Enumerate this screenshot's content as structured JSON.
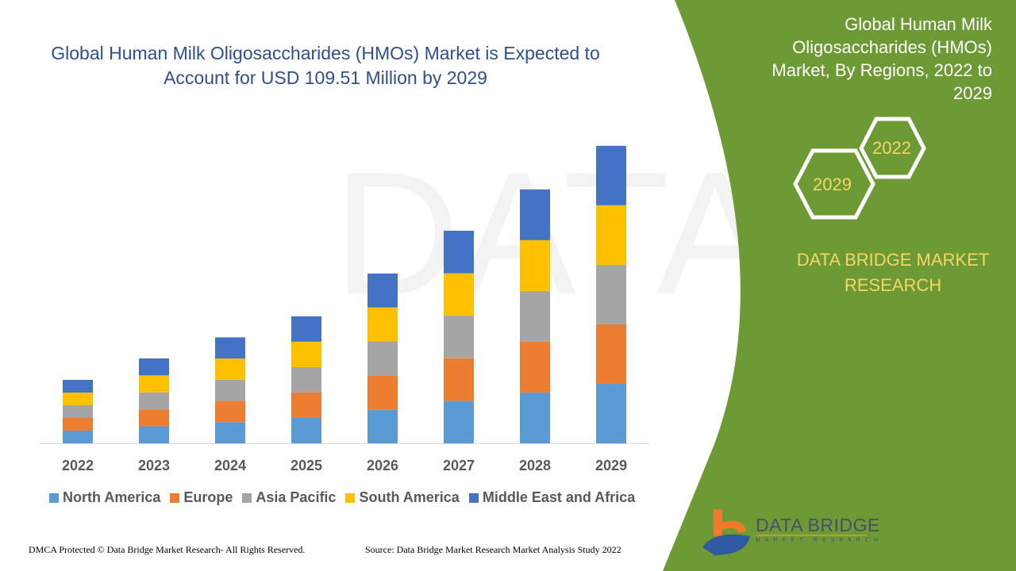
{
  "title": "Global Human Milk Oligosaccharides (HMOs) Market is Expected to Account for USD 109.51 Million by 2029",
  "side_panel": {
    "title": "Global Human Milk Oligosaccharides (HMOs) Market, By Regions, 2022 to 2029",
    "hex_start": "2022",
    "hex_end": "2029",
    "brand": "DATA BRIDGE MARKET RESEARCH",
    "panel_color": "#6e9a36",
    "accent_color": "#f5d565"
  },
  "logo": {
    "name": "DATA BRIDGE",
    "sub": "MARKET RESEARCH"
  },
  "footer": {
    "left": "DMCA Protected © Data Bridge Market Research- All Rights Reserved.",
    "right": "Source: Data Bridge Market Research Market Analysis Study 2022"
  },
  "chart_data": {
    "type": "bar",
    "stacked": true,
    "title": "Global Human Milk Oligosaccharides (HMOs) Market is Expected to Account for USD 109.51 Million by 2029",
    "xlabel": "",
    "ylabel": "",
    "ylim": [
      0,
      115
    ],
    "grid": false,
    "y_axis_visible": false,
    "legend_position": "bottom",
    "categories": [
      "2022",
      "2023",
      "2024",
      "2025",
      "2026",
      "2027",
      "2028",
      "2029"
    ],
    "series": [
      {
        "name": "North America",
        "color": "#5b9bd5",
        "values": [
          4.67,
          6.25,
          7.8,
          9.35,
          12.5,
          15.65,
          18.69,
          21.9
        ]
      },
      {
        "name": "Europe",
        "color": "#ed7d31",
        "values": [
          4.67,
          6.25,
          7.8,
          9.35,
          12.5,
          15.65,
          18.69,
          21.9
        ]
      },
      {
        "name": "Asia Pacific",
        "color": "#a5a5a5",
        "values": [
          4.67,
          6.25,
          7.8,
          9.35,
          12.5,
          15.65,
          18.69,
          21.9
        ]
      },
      {
        "name": "South America",
        "color": "#ffc000",
        "values": [
          4.67,
          6.25,
          7.8,
          9.35,
          12.5,
          15.65,
          18.69,
          21.9
        ]
      },
      {
        "name": "Middle East and Africa",
        "color": "#4472c4",
        "values": [
          4.67,
          6.25,
          7.8,
          9.35,
          12.5,
          15.65,
          18.69,
          21.9
        ]
      }
    ]
  }
}
